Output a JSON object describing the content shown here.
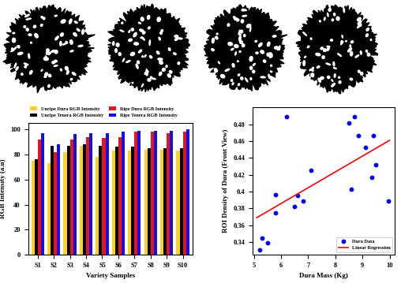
{
  "chart_data": [
    {
      "type": "bar",
      "categories": [
        "S1",
        "S2",
        "S3",
        "S4",
        "S5",
        "S6",
        "S7",
        "S8",
        "S9",
        "S10"
      ],
      "series": [
        {
          "name": "Unripe Dura RGB Intensity",
          "color": "#ffd21f",
          "values": [
            75,
            73,
            82,
            87,
            78,
            83,
            83,
            84,
            84,
            83
          ]
        },
        {
          "name": "Unripe Tenera RGB Intensity",
          "color": "#000000",
          "values": [
            76,
            87,
            87,
            88,
            87,
            86,
            86,
            85,
            85,
            85
          ]
        },
        {
          "name": "Ripe Dura RGB Intensity",
          "color": "#e8141c",
          "values": [
            92,
            82,
            92,
            94,
            93,
            94,
            98,
            98,
            97,
            98
          ]
        },
        {
          "name": "Ripe Tenera RGB Intensity",
          "color": "#1010ee",
          "values": [
            97,
            88,
            96,
            97,
            97,
            98,
            99,
            99,
            99,
            100
          ]
        }
      ],
      "x_label": "Variety Samples",
      "y_label": "RGB Intensity (a.u)",
      "ylim": [
        0,
        105
      ],
      "yticks": [
        0,
        20,
        40,
        60,
        80,
        100
      ],
      "legend": "upper left"
    },
    {
      "type": "scatter",
      "series": [
        {
          "name": "Dura Data",
          "type": "scatter",
          "color": "#0000ff",
          "marker": "o",
          "x": [
            5.2,
            5.3,
            5.5,
            5.8,
            5.8,
            6.2,
            6.5,
            6.6,
            6.8,
            7.1,
            8.5,
            8.6,
            8.7,
            8.85,
            9.1,
            9.35,
            9.4,
            9.5,
            9.95
          ],
          "values": [
            0.331,
            0.345,
            0.339,
            0.375,
            0.396,
            0.489,
            0.382,
            0.395,
            0.389,
            0.425,
            0.482,
            0.403,
            0.489,
            0.467,
            0.453,
            0.417,
            0.467,
            0.432,
            0.389
          ]
        },
        {
          "name": "Linear Regression",
          "type": "line",
          "color": "#ff0000",
          "line_style": "solid",
          "x": [
            5.1,
            10.0
          ],
          "values": [
            0.369,
            0.461
          ]
        }
      ],
      "x_label": "Dura Mass (Kg)",
      "y_label": "ROI Density of Dura (Front View)",
      "xlim": [
        4.95,
        10.2
      ],
      "xticks": [
        5,
        6,
        7,
        8,
        9,
        10
      ],
      "ylim": [
        0.325,
        0.5
      ],
      "yticks": [
        0.34,
        0.36,
        0.38,
        0.4,
        0.42,
        0.44,
        0.46,
        0.48
      ],
      "legend": "lower right"
    }
  ]
}
